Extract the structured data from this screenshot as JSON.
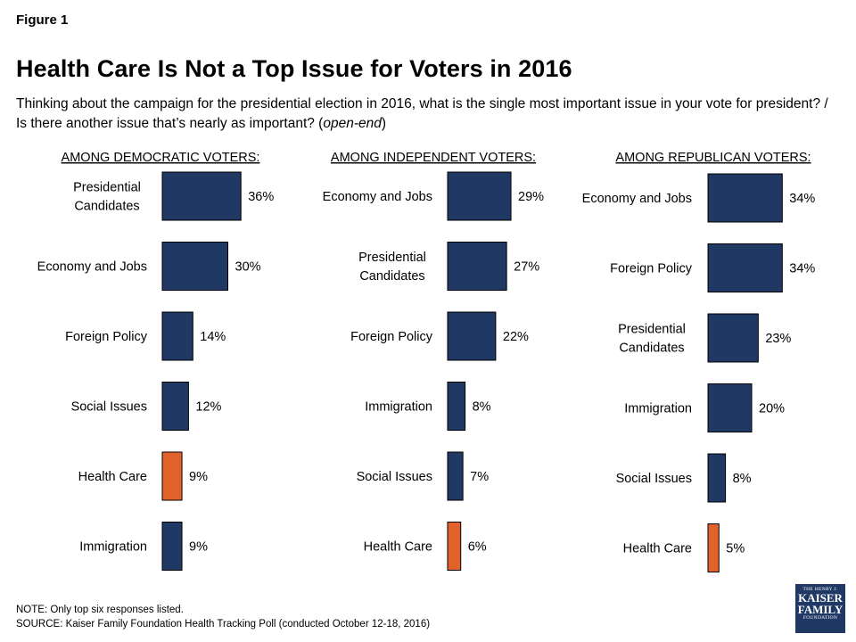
{
  "figure_label": "Figure 1",
  "title": "Health Care Is Not a Top Issue for Voters in 2016",
  "subtitle_main": "Thinking about the campaign for the presidential election in 2016, what is the single most important issue in your vote for president? / Is there another issue that’s nearly as important? (",
  "subtitle_italic": "open-end",
  "subtitle_end": ")",
  "note": "NOTE: Only top six responses listed.",
  "source": "SOURCE: Kaiser Family Foundation Health Tracking Poll (conducted October 12-18, 2016)",
  "logo": {
    "line1": "THE HENRY J.",
    "line2": "KAISER",
    "line3": "FAMILY",
    "line4": "FOUNDATION"
  },
  "colors": {
    "bar": "#1f3864",
    "highlight": "#e2622b"
  },
  "chart_data": [
    {
      "type": "bar",
      "orientation": "horizontal",
      "title": "AMONG DEMOCRATIC VOTERS:",
      "categories": [
        [
          "Presidential",
          "Candidates"
        ],
        [
          "Economy and Jobs"
        ],
        [
          "Foreign Policy"
        ],
        [
          "Social Issues"
        ],
        [
          "Health Care"
        ],
        [
          "Immigration"
        ]
      ],
      "values": [
        36,
        30,
        14,
        12,
        9,
        9
      ],
      "labels": [
        "36%",
        "30%",
        "14%",
        "12%",
        "9%",
        "9%"
      ],
      "highlight_index": 4
    },
    {
      "type": "bar",
      "orientation": "horizontal",
      "title": "AMONG INDEPENDENT VOTERS:",
      "categories": [
        [
          "Economy and Jobs"
        ],
        [
          "Presidential",
          "Candidates"
        ],
        [
          "Foreign Policy"
        ],
        [
          "Immigration"
        ],
        [
          "Social Issues"
        ],
        [
          "Health Care"
        ]
      ],
      "values": [
        29,
        27,
        22,
        8,
        7,
        6
      ],
      "labels": [
        "29%",
        "27%",
        "22%",
        "8%",
        "7%",
        "6%"
      ],
      "highlight_index": 5
    },
    {
      "type": "bar",
      "orientation": "horizontal",
      "title": "AMONG REPUBLICAN VOTERS:",
      "categories": [
        [
          "Economy and Jobs"
        ],
        [
          "Foreign Policy"
        ],
        [
          "Presidential",
          "Candidates"
        ],
        [
          "Immigration"
        ],
        [
          "Social Issues"
        ],
        [
          "Health Care"
        ]
      ],
      "values": [
        34,
        34,
        23,
        20,
        8,
        5
      ],
      "labels": [
        "34%",
        "34%",
        "23%",
        "20%",
        "8%",
        "5%"
      ],
      "highlight_index": 5
    }
  ]
}
